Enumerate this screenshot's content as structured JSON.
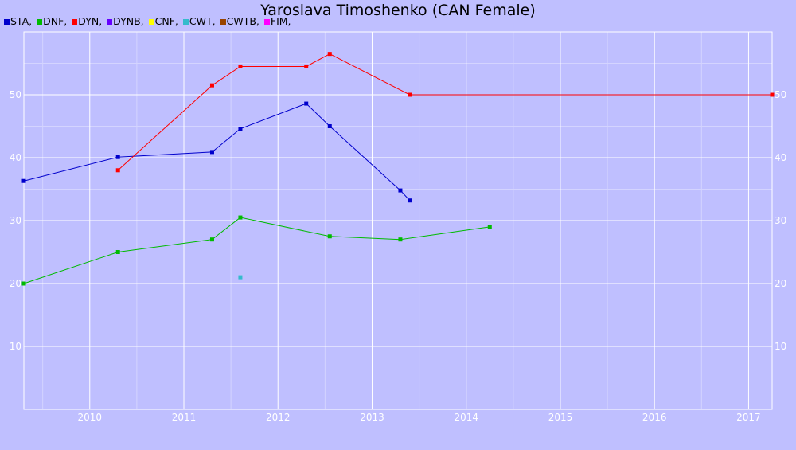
{
  "chart_data": {
    "type": "line",
    "title": "Yaroslava Timoshenko (CAN Female)",
    "xlabel": "",
    "ylabel": "",
    "xlim": [
      2009.3,
      2017.25
    ],
    "ylim": [
      0,
      60
    ],
    "x_ticks": [
      "2010",
      "2011",
      "2012",
      "2013",
      "2014",
      "2015",
      "2016",
      "2017"
    ],
    "y_ticks": [
      "10",
      "20",
      "30",
      "40",
      "50"
    ],
    "grid": true,
    "legend_position": "top-left",
    "legend": [
      {
        "label": "STA,",
        "color": "#0000cc"
      },
      {
        "label": "DNF,",
        "color": "#00bb00"
      },
      {
        "label": "DYN,",
        "color": "#ff0000"
      },
      {
        "label": "DYNB,",
        "color": "#6600ff"
      },
      {
        "label": "CNF,",
        "color": "#ffff00"
      },
      {
        "label": "CWT,",
        "color": "#33bbcc"
      },
      {
        "label": "CWTB,",
        "color": "#994400"
      },
      {
        "label": "FIM,",
        "color": "#ff00ff"
      }
    ],
    "series": [
      {
        "name": "STA",
        "color": "#0000cc",
        "x": [
          2009.3,
          2010.3,
          2011.3,
          2011.6,
          2012.3,
          2012.55,
          2013.3,
          2013.4
        ],
        "y": [
          36.3,
          40.1,
          40.9,
          44.6,
          48.6,
          45.0,
          34.8,
          33.2
        ]
      },
      {
        "name": "DNF",
        "color": "#00bb00",
        "x": [
          2009.3,
          2010.3,
          2011.3,
          2011.6,
          2012.55,
          2013.3,
          2014.25
        ],
        "y": [
          20.0,
          25.0,
          27.0,
          30.5,
          27.5,
          27.0,
          29.0
        ]
      },
      {
        "name": "DYN",
        "color": "#ff0000",
        "x": [
          2010.3,
          2011.3,
          2011.6,
          2012.3,
          2012.55,
          2013.4,
          2017.25
        ],
        "y": [
          38.0,
          51.5,
          54.5,
          54.5,
          56.5,
          50.0,
          50.0
        ]
      },
      {
        "name": "CWT",
        "color": "#33bbcc",
        "x": [
          2011.6
        ],
        "y": [
          21.0
        ]
      }
    ]
  }
}
